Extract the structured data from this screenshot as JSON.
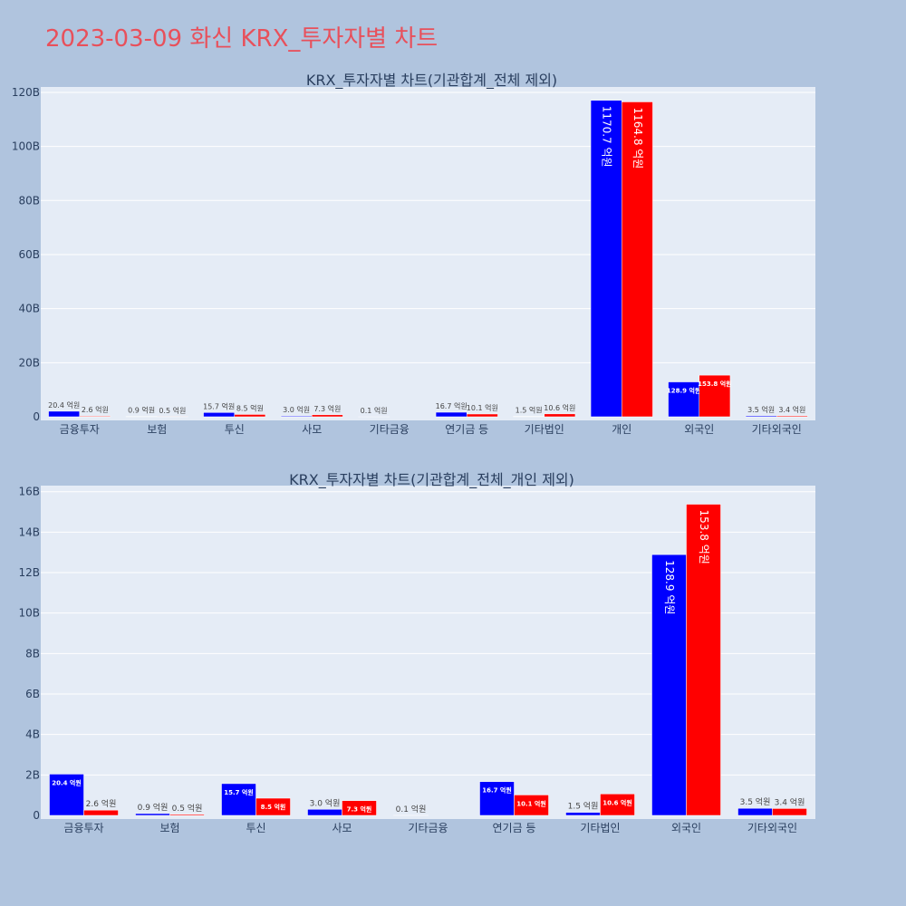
{
  "page": {
    "title": "2023-03-09 화신 KRX_투자자별 차트",
    "background": "#b0c4de",
    "plot_background": "#e5ecf6",
    "title_color": "#e8505b"
  },
  "chart_data": [
    {
      "type": "bar",
      "title": "KRX_투자자별 차트(기관합계_전체 제외)",
      "categories": [
        "금융투자",
        "보험",
        "투신",
        "사모",
        "기타금융",
        "연기금 등",
        "기타법인",
        "개인",
        "외국인",
        "기타외국인"
      ],
      "series": [
        {
          "color": "#0000ff",
          "values": [
            2.04,
            0.09,
            1.57,
            0.3,
            0.01,
            1.67,
            0.15,
            117.07,
            12.89,
            0.35
          ],
          "labels": [
            "20.4 억원",
            "0.9 억원",
            "15.7 억원",
            "3.0 억원",
            "0.1 억원",
            "16.7 억원",
            "1.5 억원",
            "1170.7 억원",
            "128.9 억원",
            "3.5 억원"
          ]
        },
        {
          "color": "#ff0000",
          "values": [
            0.26,
            0.05,
            0.85,
            0.73,
            0,
            1.01,
            1.06,
            116.48,
            15.38,
            0.34
          ],
          "labels": [
            "2.6 억원",
            "0.5 억원",
            "8.5 억원",
            "7.3 억원",
            "",
            "10.1 억원",
            "10.6 억원",
            "1164.8 억원",
            "153.8 억원",
            "3.4 억원"
          ]
        }
      ],
      "ylim": [
        0,
        122
      ],
      "yticks": [
        0,
        20,
        40,
        60,
        80,
        100,
        120
      ],
      "ytick_labels": [
        "0",
        "20B",
        "40B",
        "60B",
        "80B",
        "100B",
        "120B"
      ],
      "grid": true
    },
    {
      "type": "bar",
      "title": "KRX_투자자별 차트(기관합계_전체_개인 제외)",
      "categories": [
        "금융투자",
        "보험",
        "투신",
        "사모",
        "기타금융",
        "연기금 등",
        "기타법인",
        "외국인",
        "기타외국인"
      ],
      "series": [
        {
          "color": "#0000ff",
          "values": [
            2.04,
            0.09,
            1.57,
            0.3,
            0.01,
            1.67,
            0.15,
            12.89,
            0.35
          ],
          "labels": [
            "20.4 억원",
            "0.9 억원",
            "15.7 억원",
            "3.0 억원",
            "0.1 억원",
            "16.7 억원",
            "1.5 억원",
            "128.9 억원",
            "3.5 억원"
          ]
        },
        {
          "color": "#ff0000",
          "values": [
            0.26,
            0.05,
            0.85,
            0.73,
            0,
            1.01,
            1.06,
            15.38,
            0.34
          ],
          "labels": [
            "2.6 억원",
            "0.5 억원",
            "8.5 억원",
            "7.3 억원",
            "",
            "10.1 억원",
            "10.6 억원",
            "153.8 억원",
            "3.4 억원"
          ]
        }
      ],
      "ylim": [
        0,
        16.3
      ],
      "yticks": [
        0,
        2,
        4,
        6,
        8,
        10,
        12,
        14,
        16
      ],
      "ytick_labels": [
        "0",
        "2B",
        "4B",
        "6B",
        "8B",
        "10B",
        "12B",
        "14B",
        "16B"
      ],
      "grid": true
    }
  ]
}
